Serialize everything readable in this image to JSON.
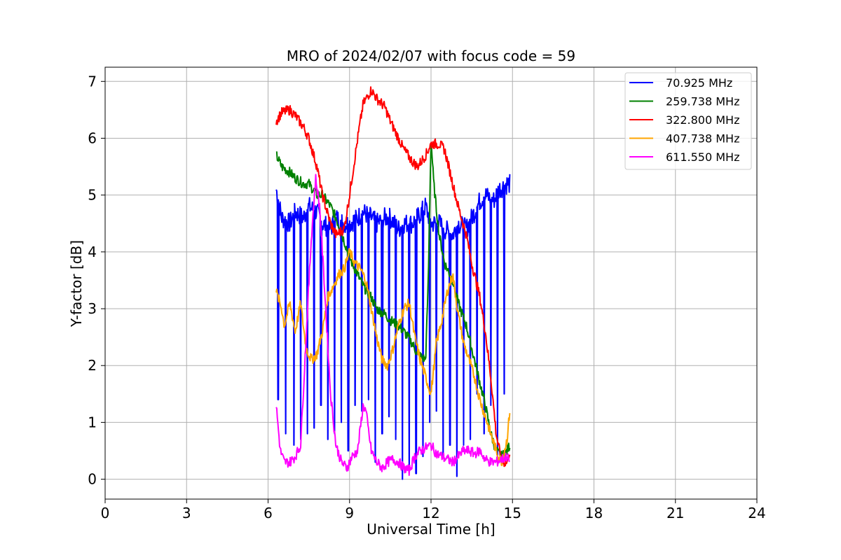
{
  "chart_data": {
    "type": "line",
    "title": "MRO of 2024/02/07 with focus code = 59",
    "xlabel": "Universal Time [h]",
    "ylabel": "Y-factor [dB]",
    "xlim": [
      0,
      24
    ],
    "ylim": [
      -0.35,
      7.25
    ],
    "xticks": [
      0,
      3,
      6,
      9,
      12,
      15,
      18,
      21,
      24
    ],
    "yticks": [
      0,
      1,
      2,
      3,
      4,
      5,
      6,
      7
    ],
    "grid": true,
    "legend_position": "top-right",
    "series": [
      {
        "name": "  70.925 MHz",
        "color": "#0000ff",
        "x": [
          6.3,
          6.5,
          6.8,
          7.0,
          7.3,
          7.5,
          7.8,
          8.0,
          8.3,
          8.5,
          8.8,
          9.0,
          9.3,
          9.5,
          9.8,
          10.0,
          10.3,
          10.5,
          10.8,
          11.0,
          11.3,
          11.5,
          11.8,
          12.0,
          12.3,
          12.5,
          12.8,
          13.0,
          13.3,
          13.5,
          13.8,
          14.0,
          14.3,
          14.5,
          14.8,
          14.9
        ],
        "y": [
          5.1,
          4.6,
          4.5,
          4.7,
          4.6,
          4.8,
          4.7,
          4.5,
          4.4,
          4.6,
          4.5,
          4.5,
          4.6,
          4.7,
          4.6,
          4.5,
          4.6,
          4.6,
          4.4,
          4.5,
          4.5,
          4.6,
          4.8,
          4.5,
          4.5,
          4.4,
          4.3,
          4.5,
          4.4,
          4.6,
          4.9,
          5.0,
          4.9,
          5.1,
          5.2,
          5.2
        ],
        "dips_x": [
          6.37,
          6.65,
          6.95,
          7.2,
          7.45,
          7.7,
          7.95,
          8.2,
          8.45,
          8.7,
          8.95,
          9.2,
          9.45,
          9.7,
          9.95,
          10.2,
          10.45,
          10.7,
          10.95,
          11.2,
          11.45,
          11.7,
          11.95,
          12.2,
          12.45,
          12.7,
          12.95,
          13.2,
          13.45,
          13.7,
          13.95,
          14.2,
          14.45,
          14.7
        ],
        "dips_y": [
          1.4,
          0.8,
          0.6,
          0.7,
          0.8,
          0.9,
          1.3,
          0.7,
          0.8,
          1.0,
          0.5,
          1.3,
          1.2,
          1.4,
          0.3,
          0.8,
          1.1,
          0.7,
          0.0,
          0.2,
          0.1,
          0.4,
          1.0,
          1.2,
          0.4,
          0.6,
          0.05,
          0.6,
          0.7,
          1.5,
          0.8,
          1.3,
          0.4,
          1.5
        ]
      },
      {
        "name": "259.738 MHz",
        "color": "#008000",
        "x": [
          6.3,
          6.5,
          6.8,
          7.0,
          7.3,
          7.5,
          7.8,
          8.0,
          8.3,
          8.5,
          8.8,
          9.0,
          9.3,
          9.5,
          9.8,
          10.0,
          10.3,
          10.5,
          10.8,
          11.0,
          11.3,
          11.5,
          11.8,
          11.9,
          12.0,
          12.1,
          12.3,
          12.5,
          12.8,
          13.0,
          13.3,
          13.5,
          13.8,
          14.0,
          14.2,
          14.4,
          14.6,
          14.8,
          14.9
        ],
        "y": [
          5.7,
          5.5,
          5.4,
          5.3,
          5.2,
          5.2,
          5.0,
          5.0,
          4.8,
          4.6,
          4.2,
          3.9,
          3.6,
          3.4,
          3.2,
          3.0,
          2.9,
          2.8,
          2.7,
          2.6,
          2.4,
          2.2,
          2.1,
          3.5,
          6.0,
          5.2,
          4.3,
          3.8,
          3.5,
          3.1,
          2.7,
          2.3,
          1.7,
          1.3,
          0.8,
          0.5,
          0.4,
          0.5,
          0.6
        ]
      },
      {
        "name": "322.800 MHz",
        "color": "#ff0000",
        "x": [
          6.3,
          6.5,
          6.8,
          7.0,
          7.3,
          7.5,
          7.8,
          8.0,
          8.3,
          8.5,
          8.8,
          9.0,
          9.3,
          9.5,
          9.8,
          10.0,
          10.3,
          10.5,
          10.8,
          11.0,
          11.3,
          11.5,
          11.8,
          12.0,
          12.3,
          12.5,
          12.8,
          13.0,
          13.3,
          13.5,
          13.8,
          14.0,
          14.2,
          14.4,
          14.6,
          14.8,
          14.9
        ],
        "y": [
          6.3,
          6.45,
          6.5,
          6.4,
          6.2,
          6.0,
          5.5,
          5.0,
          4.5,
          4.3,
          4.4,
          5.0,
          6.0,
          6.6,
          6.85,
          6.7,
          6.55,
          6.3,
          6.0,
          5.8,
          5.6,
          5.5,
          5.7,
          5.9,
          5.9,
          5.8,
          5.2,
          4.8,
          4.3,
          3.8,
          3.2,
          2.6,
          1.8,
          0.8,
          0.3,
          0.3,
          0.5
        ]
      },
      {
        "name": "407.738 MHz",
        "color": "#ffa500",
        "x": [
          6.3,
          6.5,
          6.6,
          6.8,
          7.0,
          7.2,
          7.4,
          7.6,
          7.8,
          8.0,
          8.2,
          8.4,
          8.6,
          8.8,
          9.0,
          9.2,
          9.4,
          9.6,
          9.8,
          10.0,
          10.2,
          10.4,
          10.6,
          10.8,
          11.0,
          11.2,
          11.4,
          11.6,
          11.8,
          12.0,
          12.2,
          12.4,
          12.6,
          12.8,
          13.0,
          13.2,
          13.4,
          13.6,
          13.8,
          14.0,
          14.2,
          14.4,
          14.6,
          14.8,
          14.9
        ],
        "y": [
          3.3,
          3.0,
          2.7,
          3.1,
          2.6,
          3.1,
          2.3,
          2.1,
          2.2,
          2.6,
          3.2,
          3.4,
          3.6,
          3.7,
          4.0,
          3.8,
          3.7,
          3.5,
          3.0,
          2.5,
          2.1,
          2.0,
          2.3,
          2.7,
          3.0,
          3.1,
          2.5,
          2.1,
          1.8,
          1.5,
          2.4,
          2.8,
          3.3,
          3.6,
          2.9,
          2.4,
          2.1,
          1.8,
          1.4,
          1.1,
          0.8,
          0.5,
          0.3,
          0.7,
          1.2
        ]
      },
      {
        "name": "611.550 MHz",
        "color": "#ff00ff",
        "x": [
          6.3,
          6.45,
          6.6,
          6.8,
          7.0,
          7.2,
          7.4,
          7.6,
          7.75,
          7.9,
          8.1,
          8.3,
          8.5,
          8.7,
          8.9,
          9.1,
          9.3,
          9.5,
          9.6,
          9.8,
          10.0,
          10.2,
          10.4,
          10.6,
          10.8,
          11.0,
          11.2,
          11.4,
          11.6,
          11.8,
          12.0,
          12.2,
          12.4,
          12.6,
          12.8,
          13.0,
          13.2,
          13.4,
          13.6,
          13.8,
          14.0,
          14.2,
          14.4,
          14.6,
          14.8,
          14.9
        ],
        "y": [
          1.3,
          0.5,
          0.3,
          0.3,
          0.4,
          0.6,
          2.5,
          4.3,
          5.3,
          4.8,
          3.2,
          1.5,
          0.6,
          0.3,
          0.2,
          0.4,
          0.5,
          1.3,
          1.2,
          0.5,
          0.3,
          0.2,
          0.3,
          0.35,
          0.3,
          0.2,
          0.15,
          0.4,
          0.5,
          0.55,
          0.6,
          0.45,
          0.4,
          0.35,
          0.3,
          0.4,
          0.5,
          0.5,
          0.45,
          0.5,
          0.35,
          0.3,
          0.3,
          0.35,
          0.4,
          0.3
        ]
      }
    ]
  }
}
